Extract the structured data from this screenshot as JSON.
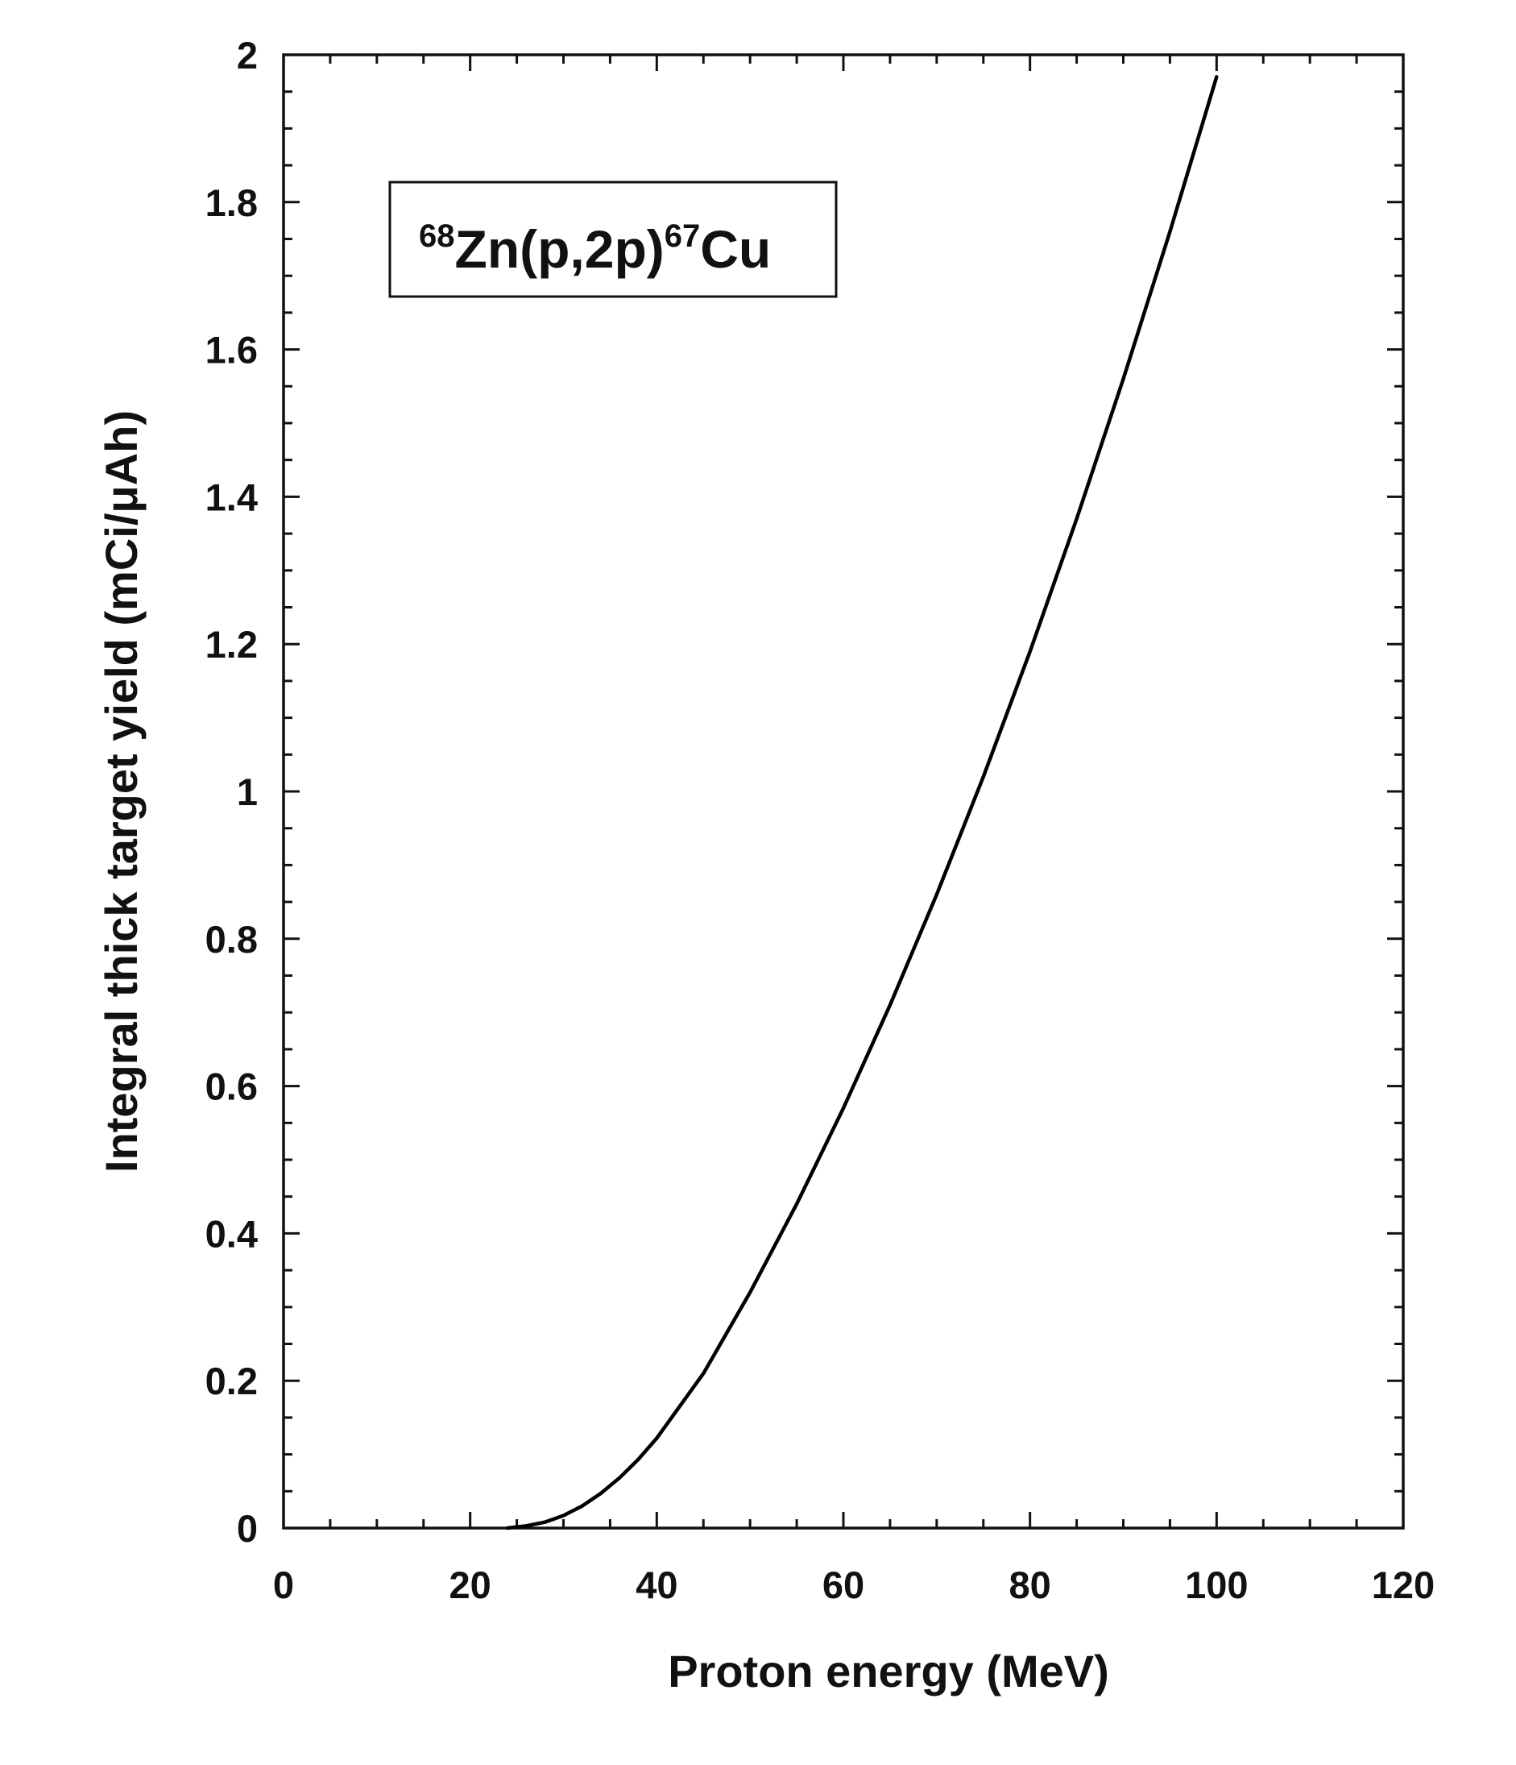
{
  "chart_data": {
    "type": "line",
    "title": "",
    "xlabel": "Proton energy (MeV)",
    "ylabel": "Integral thick target yield (mCi/μAh)",
    "xlim": [
      0,
      120
    ],
    "ylim": [
      0,
      2
    ],
    "x_ticks": [
      "0",
      "20",
      "40",
      "60",
      "80",
      "100",
      "120"
    ],
    "y_ticks": [
      "0",
      "0.2",
      "0.4",
      "0.6",
      "0.8",
      "1",
      "1.2",
      "1.4",
      "1.6",
      "1.8",
      "2"
    ],
    "grid": false,
    "legend": {
      "position": "top-left",
      "label": {
        "sup1": "68",
        "main1": "Zn(p,2p)",
        "sup2": "67",
        "main2": "Cu"
      }
    },
    "series": [
      {
        "name": "68Zn(p,2p)67Cu",
        "color": "#000000",
        "x": [
          24,
          26,
          28,
          30,
          32,
          34,
          36,
          38,
          40,
          45,
          50,
          55,
          60,
          65,
          70,
          75,
          80,
          85,
          90,
          95,
          100
        ],
        "y": [
          0,
          0.003,
          0.008,
          0.017,
          0.03,
          0.047,
          0.068,
          0.093,
          0.122,
          0.21,
          0.32,
          0.44,
          0.57,
          0.71,
          0.86,
          1.02,
          1.19,
          1.37,
          1.56,
          1.76,
          1.97
        ]
      }
    ]
  }
}
